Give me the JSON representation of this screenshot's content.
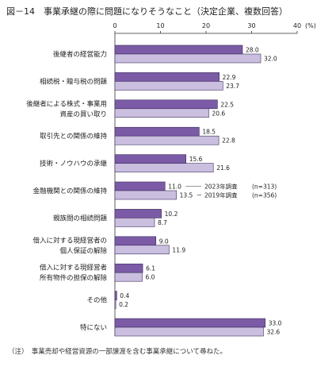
{
  "title": "図－14　事業承継の際に問題になりそうなこと（決定企業、複数回答）",
  "note": "（注）　事業売却や経営資源の一部譲渡を含む事業承継について尋ねた。",
  "colors": {
    "series_2023": "#7b5aa6",
    "series_2019": "#cbbfe0",
    "stroke": "#3d2f5c"
  },
  "chart_data": {
    "type": "bar",
    "orientation": "horizontal",
    "xlim": [
      0,
      40
    ],
    "xticks": [
      0,
      10,
      20,
      30,
      40
    ],
    "unit": "(%)",
    "categories": [
      [
        "後継者の経営能力"
      ],
      [
        "相続税・贈与税の問題"
      ],
      [
        "後継者による株式・事業用",
        "資産の買い取り"
      ],
      [
        "取引先との関係の維持"
      ],
      [
        "技術・ノウハウの承継"
      ],
      [
        "金融機関との関係の維持"
      ],
      [
        "親族間の相続問題"
      ],
      [
        "借入に対する現経営者の",
        "個人保証の解除"
      ],
      [
        "借入に対する現経営者",
        "所有物件の担保の解除"
      ],
      [
        "その他"
      ],
      [
        "特にない"
      ]
    ],
    "series": [
      {
        "name": "2023年調査",
        "n": "(n=313)",
        "values": [
          28.0,
          22.9,
          22.5,
          18.5,
          15.6,
          11.0,
          10.2,
          9.0,
          6.1,
          0.4,
          33.0
        ]
      },
      {
        "name": "2019年調査",
        "n": "(n=356)",
        "values": [
          32.0,
          23.7,
          20.6,
          22.8,
          21.6,
          13.5,
          8.7,
          11.9,
          6.0,
          0.2,
          32.6
        ]
      }
    ]
  }
}
